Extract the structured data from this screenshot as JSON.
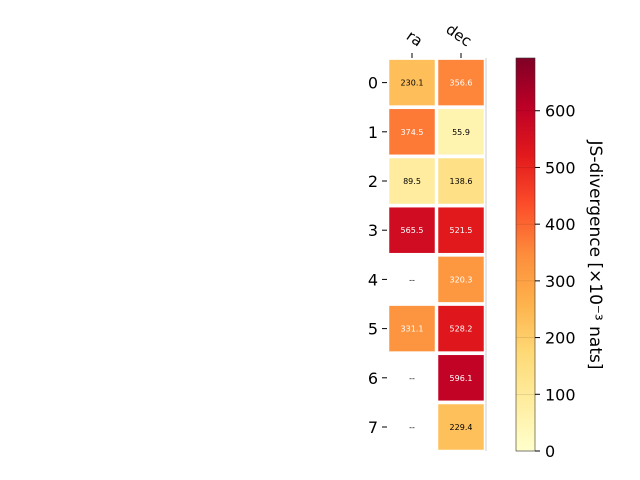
{
  "chart_data": {
    "type": "heatmap",
    "columns": [
      "ra",
      "dec"
    ],
    "rows": [
      "0",
      "1",
      "2",
      "3",
      "4",
      "5",
      "6",
      "7"
    ],
    "values": [
      [
        230.1,
        356.6
      ],
      [
        374.5,
        55.9
      ],
      [
        89.5,
        138.6
      ],
      [
        565.5,
        521.5
      ],
      [
        null,
        320.3
      ],
      [
        331.1,
        528.2
      ],
      [
        null,
        596.1
      ],
      [
        null,
        229.4
      ]
    ],
    "missing_label": "--",
    "colorbar": {
      "label": "JS-divergence [×10⁻³ nats]",
      "range": [
        0,
        693
      ],
      "ticks": [
        0,
        100,
        200,
        300,
        400,
        500,
        600
      ],
      "colormap": "YlOrRd"
    }
  }
}
